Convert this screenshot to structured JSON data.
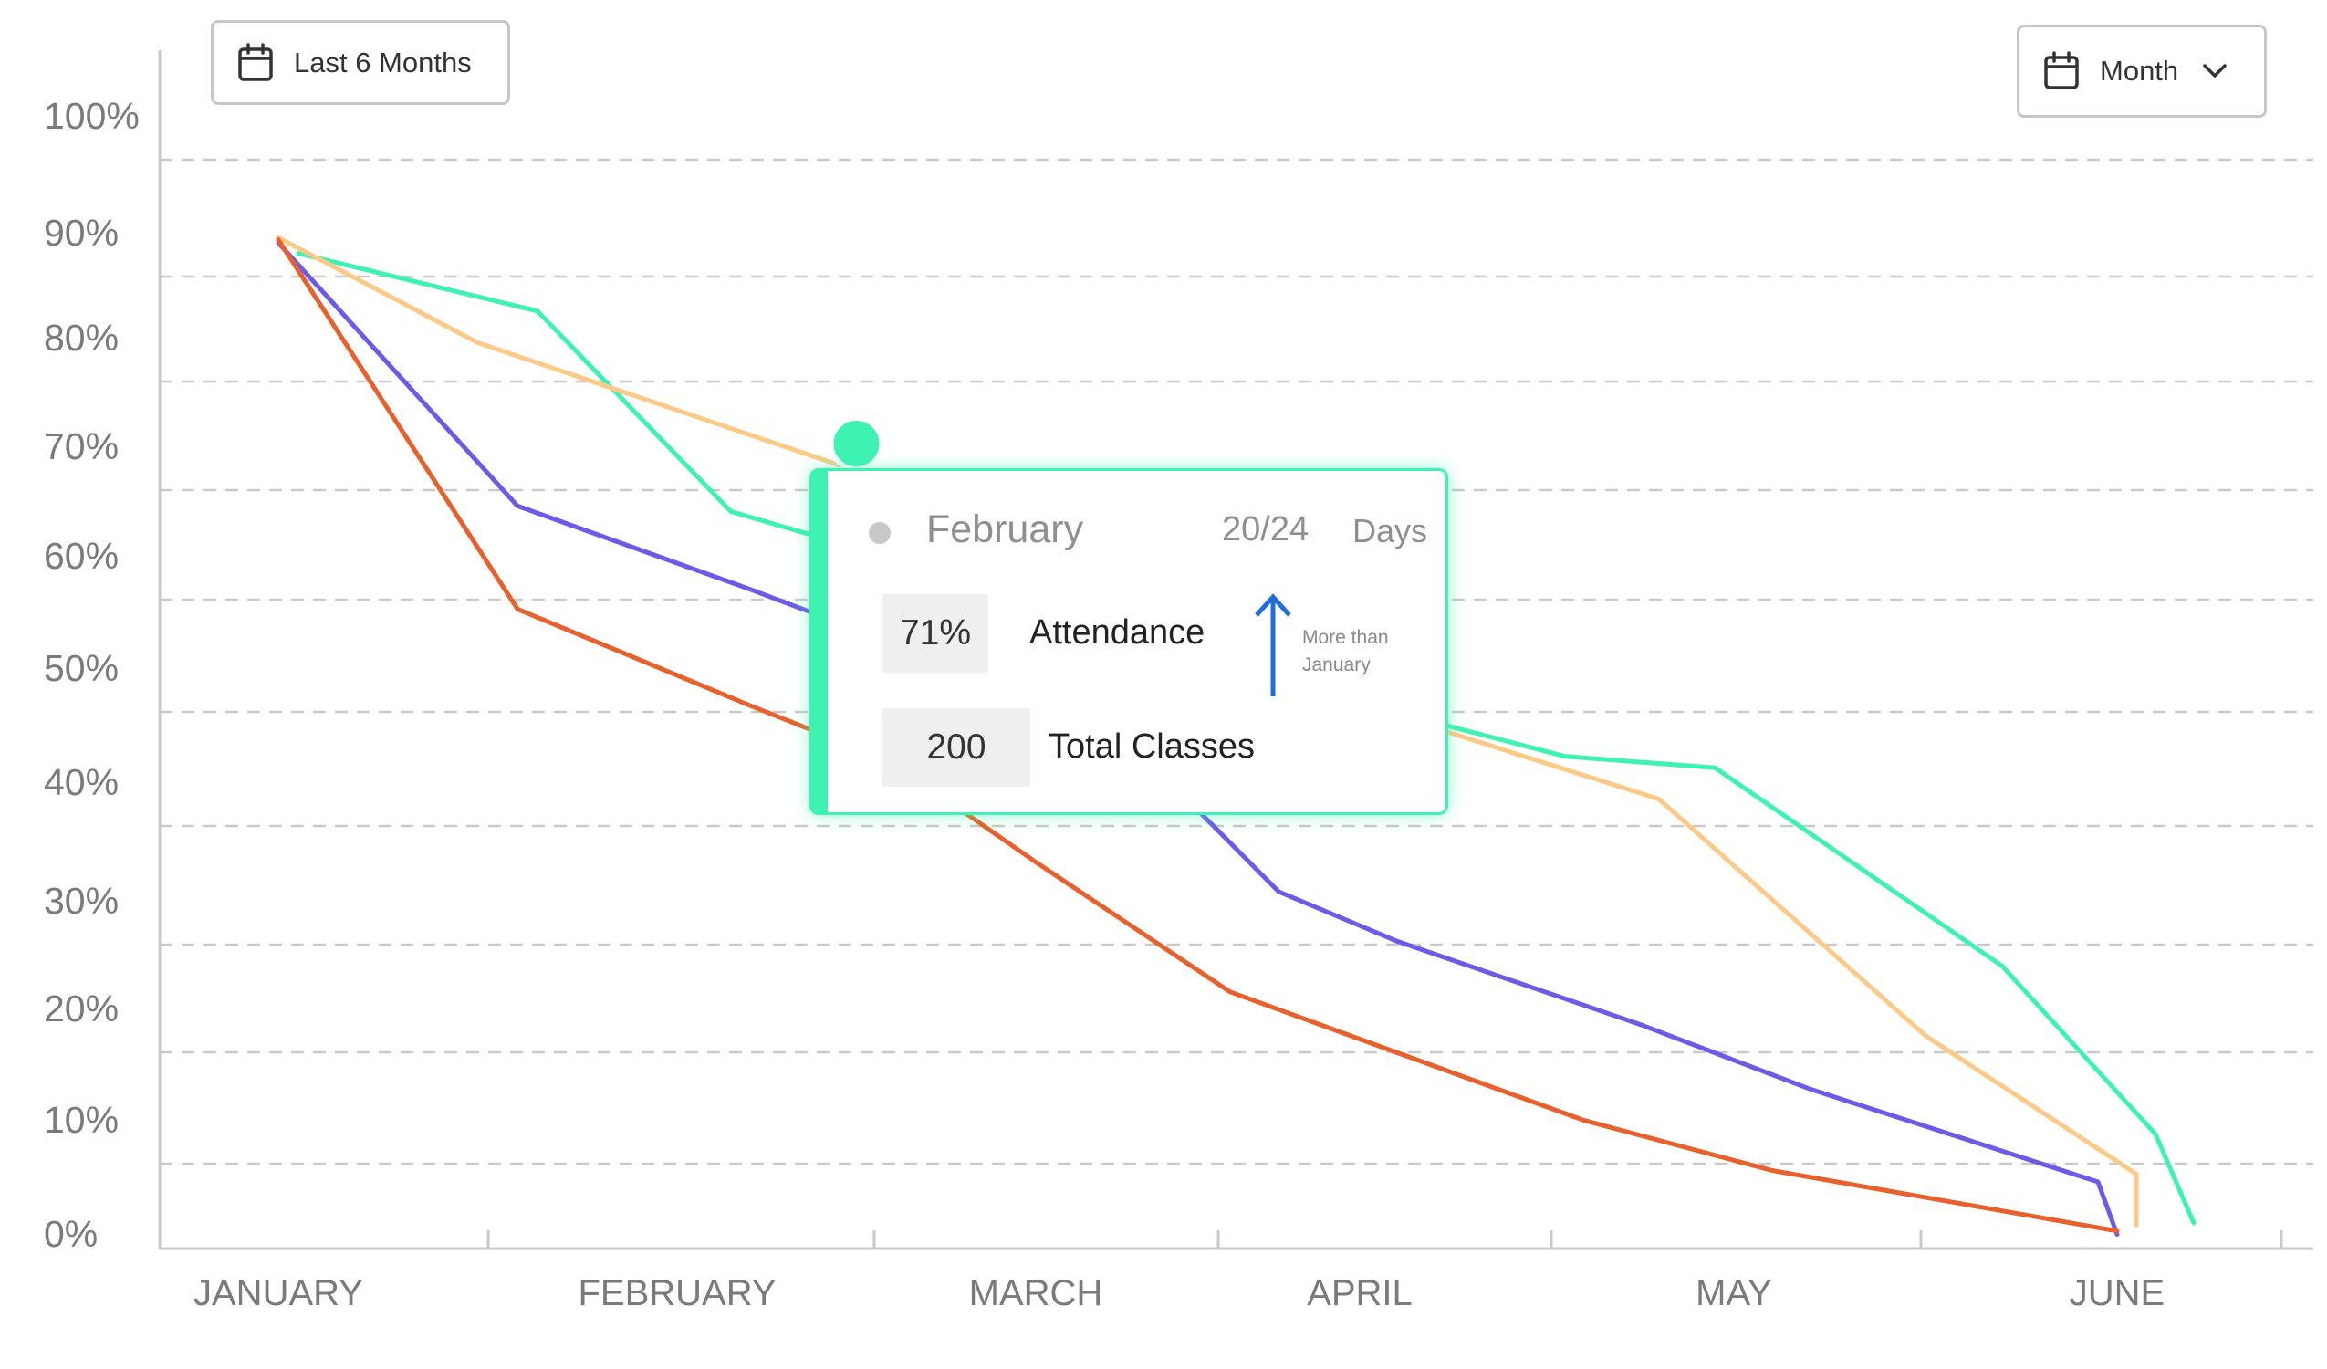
{
  "controls": {
    "range_label": "Last 6 Months",
    "period_label": "Month"
  },
  "tooltip": {
    "month": "February",
    "days_value": "20/24",
    "days_unit": "Days",
    "attendance_value": "71%",
    "attendance_label": "Attendance",
    "more_than_line1": "More than",
    "more_than_line2": "January",
    "classes_value": "200",
    "classes_label": "Total Classes",
    "accent_color": "#3ef2b2",
    "arrow_color": "#1e6fd8"
  },
  "chart_data": {
    "type": "line",
    "x_axis_labels": [
      "JANUARY",
      "FEBRUARY",
      "MARCH",
      "APRIL",
      "MAY",
      "JUNE"
    ],
    "y_tick_labels": [
      "0%",
      "10%",
      "20%",
      "30%",
      "40%",
      "50%",
      "60%",
      "70%",
      "80%",
      "90%",
      "100%"
    ],
    "ylim": [
      0,
      100
    ],
    "grid": "horizontal dashed",
    "highlight": {
      "x": 1.5,
      "y": 70.5,
      "color": "#3ef2b2"
    },
    "series": [
      {
        "color": "#3ef2b2",
        "points": [
          [
            0.05,
            88.3
          ],
          [
            0.65,
            82.8
          ],
          [
            1.15,
            64.3
          ],
          [
            1.55,
            60.5
          ],
          [
            2.15,
            53.5
          ],
          [
            3.55,
            42.5
          ],
          [
            3.95,
            41.5
          ],
          [
            4.7,
            24.2
          ],
          [
            5.1,
            9
          ],
          [
            5.2,
            1.2
          ]
        ]
      },
      {
        "color": "#fcc986",
        "points": [
          [
            0,
            89.8
          ],
          [
            0.5,
            79.8
          ],
          [
            1.5,
            68
          ],
          [
            2.2,
            58
          ],
          [
            3.2,
            45
          ],
          [
            3.8,
            38.8
          ],
          [
            4.5,
            17.8
          ],
          [
            5.05,
            5.5
          ],
          [
            5.05,
            1
          ]
        ]
      },
      {
        "color": "#6b5be8",
        "points": [
          [
            0,
            89.3
          ],
          [
            0.6,
            64.8
          ],
          [
            1.2,
            57.3
          ],
          [
            1.6,
            52.5
          ],
          [
            2.3,
            43.5
          ],
          [
            2.75,
            31
          ],
          [
            3.1,
            26.5
          ],
          [
            3.75,
            18.8
          ],
          [
            4.2,
            13
          ],
          [
            4.95,
            4.8
          ],
          [
            5,
            0.2
          ]
        ]
      },
      {
        "color": "#e8602c",
        "points": [
          [
            0,
            89.6
          ],
          [
            0.6,
            55.5
          ],
          [
            1.2,
            47
          ],
          [
            1.6,
            42
          ],
          [
            2,
            33.5
          ],
          [
            2.6,
            21.8
          ],
          [
            3,
            17.5
          ],
          [
            3.6,
            10.2
          ],
          [
            4.1,
            5.8
          ],
          [
            5,
            0.5
          ]
        ]
      }
    ]
  }
}
